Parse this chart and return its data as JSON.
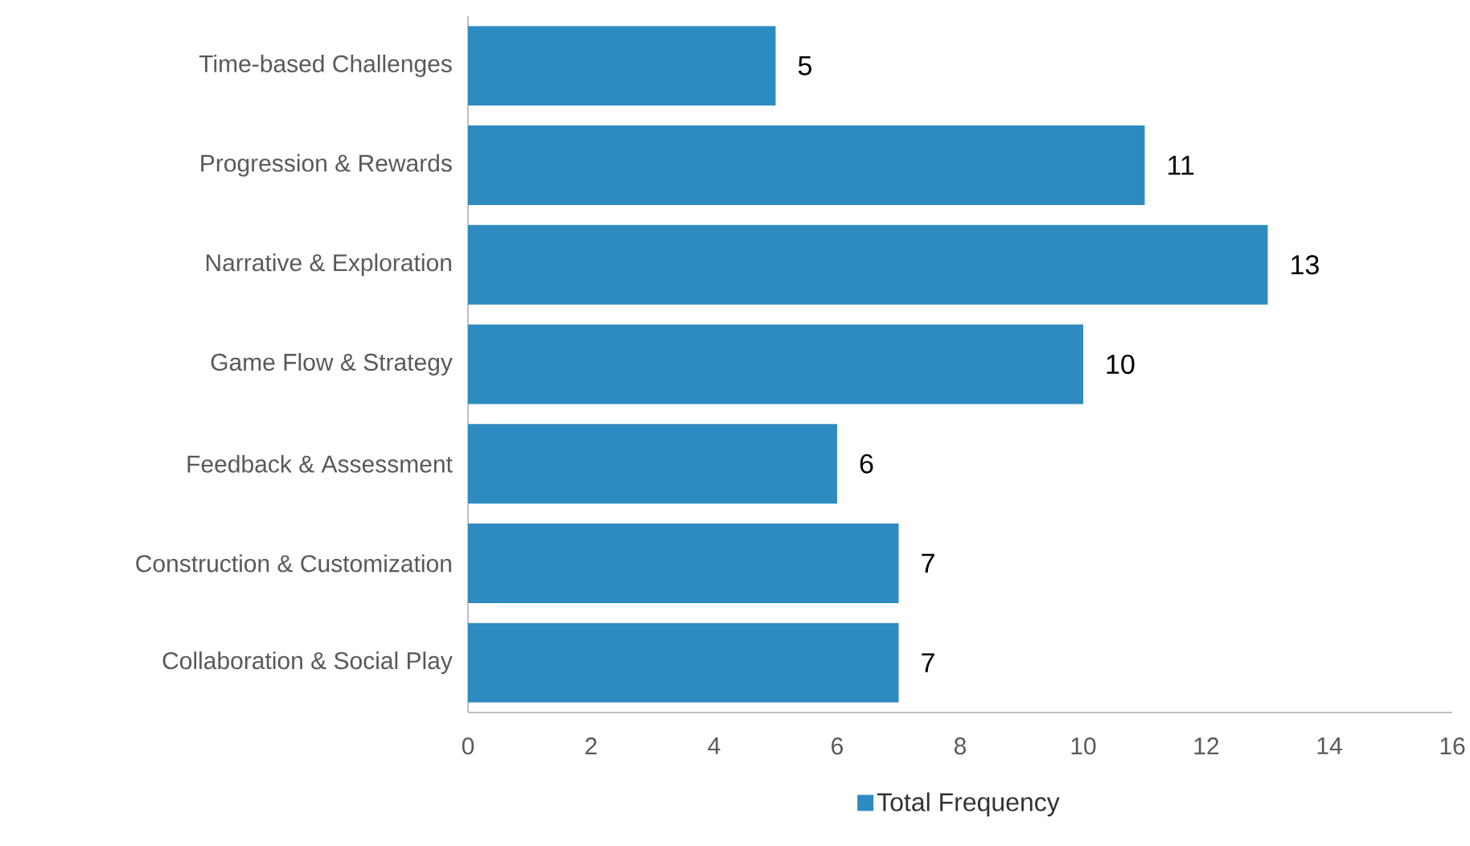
{
  "chart_data": {
    "type": "bar",
    "orientation": "horizontal",
    "categories": [
      "Time-based Challenges",
      "Progression & Rewards",
      "Narrative & Exploration",
      "Game Flow & Strategy",
      "Feedback & Assessment",
      "Construction & Customization",
      "Collaboration & Social Play"
    ],
    "series": [
      {
        "name": "Total Frequency",
        "color": "#2e8bc0",
        "values": [
          5,
          11,
          13,
          10,
          6,
          7,
          7
        ]
      }
    ],
    "xlim": [
      0,
      16
    ],
    "xticks": [
      0,
      2,
      4,
      6,
      8,
      10,
      12,
      14,
      16
    ],
    "data_labels": true,
    "legend": "bottom",
    "grid": false
  }
}
